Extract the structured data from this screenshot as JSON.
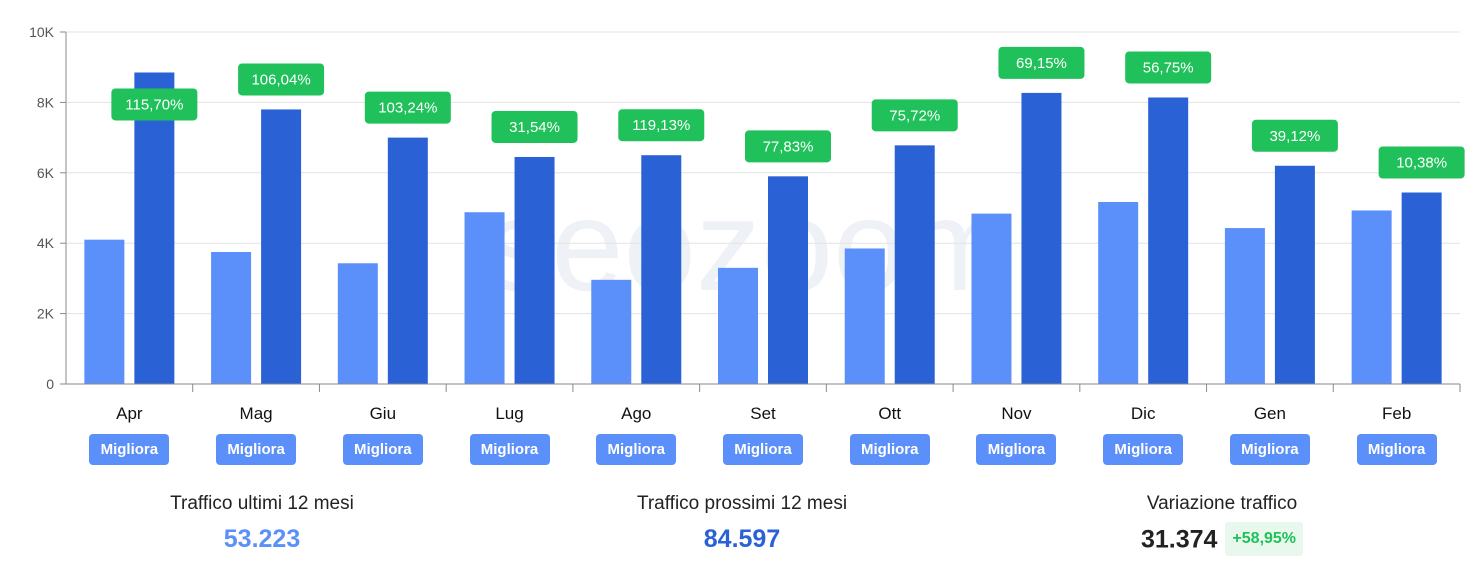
{
  "chart_data": {
    "type": "bar",
    "categories": [
      "Apr",
      "Mag",
      "Giu",
      "Lug",
      "Ago",
      "Set",
      "Ott",
      "Nov",
      "Dic",
      "Gen",
      "Feb"
    ],
    "series": [
      {
        "values": [
          4100,
          3750,
          3430,
          4880,
          2960,
          3300,
          3850,
          4840,
          5170,
          4430,
          4930
        ]
      },
      {
        "values": [
          8850,
          7800,
          7000,
          6450,
          6500,
          5900,
          6780,
          8270,
          8140,
          6200,
          5440
        ]
      }
    ],
    "change_labels": [
      "115,70%",
      "106,04%",
      "103,24%",
      "31,54%",
      "119,13%",
      "77,83%",
      "75,72%",
      "69,15%",
      "56,75%",
      "39,12%",
      "10,38%"
    ],
    "ylim": [
      0,
      10000
    ],
    "yticks": [
      0,
      2000,
      4000,
      6000,
      8000,
      10000
    ],
    "ytick_labels": [
      "0",
      "2K",
      "4K",
      "6K",
      "8K",
      "10K"
    ],
    "grid": true,
    "watermark": "seozoom",
    "colors": {
      "last_12": "#5b8ff9",
      "next_12": "#2a62d6",
      "change_label": "#20c15a"
    }
  },
  "buttons": {
    "migliora_label": "Migliora",
    "color": "#5b8ff9"
  },
  "summary": {
    "last_12": {
      "label": "Traffico ultimi 12 mesi",
      "value": "53.223",
      "color": "#5b8ff9"
    },
    "next_12": {
      "label": "Traffico prossimi 12 mesi",
      "value": "84.597",
      "color": "#2a62d6"
    },
    "variation": {
      "label": "Variazione traffico",
      "value": "31.374",
      "delta": "+58,95%",
      "color": "#222222",
      "delta_color": "#20c15a",
      "delta_bg": "#e8f8ec"
    }
  }
}
